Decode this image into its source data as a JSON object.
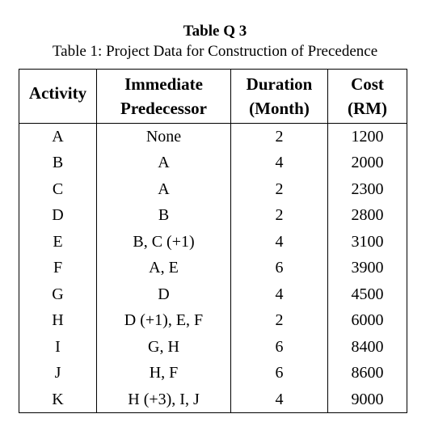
{
  "heading": "Table Q 3",
  "caption": "Table 1: Project Data for Construction of Precedence",
  "columns": {
    "activity": "Activity",
    "predecessor": [
      "Immediate",
      "Predecessor"
    ],
    "duration": [
      "Duration",
      "(Month)"
    ],
    "cost": [
      "Cost",
      "(RM)"
    ]
  },
  "rows": [
    {
      "activity": "A",
      "predecessor": "None",
      "duration": "2",
      "cost": "1200"
    },
    {
      "activity": "B",
      "predecessor": "A",
      "duration": "4",
      "cost": "2000"
    },
    {
      "activity": "C",
      "predecessor": "A",
      "duration": "2",
      "cost": "2300"
    },
    {
      "activity": "D",
      "predecessor": "B",
      "duration": "2",
      "cost": "2800"
    },
    {
      "activity": "E",
      "predecessor": "B, C (+1)",
      "duration": "4",
      "cost": "3100"
    },
    {
      "activity": "F",
      "predecessor": "A, E",
      "duration": "6",
      "cost": "3900"
    },
    {
      "activity": "G",
      "predecessor": "D",
      "duration": "4",
      "cost": "4500"
    },
    {
      "activity": "H",
      "predecessor": "D (+1), E, F",
      "duration": "2",
      "cost": "6000"
    },
    {
      "activity": "I",
      "predecessor": "G, H",
      "duration": "6",
      "cost": "8400"
    },
    {
      "activity": "J",
      "predecessor": "H, F",
      "duration": "6",
      "cost": "8600"
    },
    {
      "activity": "K",
      "predecessor": "H (+3), I, J",
      "duration": "4",
      "cost": "9000"
    }
  ]
}
